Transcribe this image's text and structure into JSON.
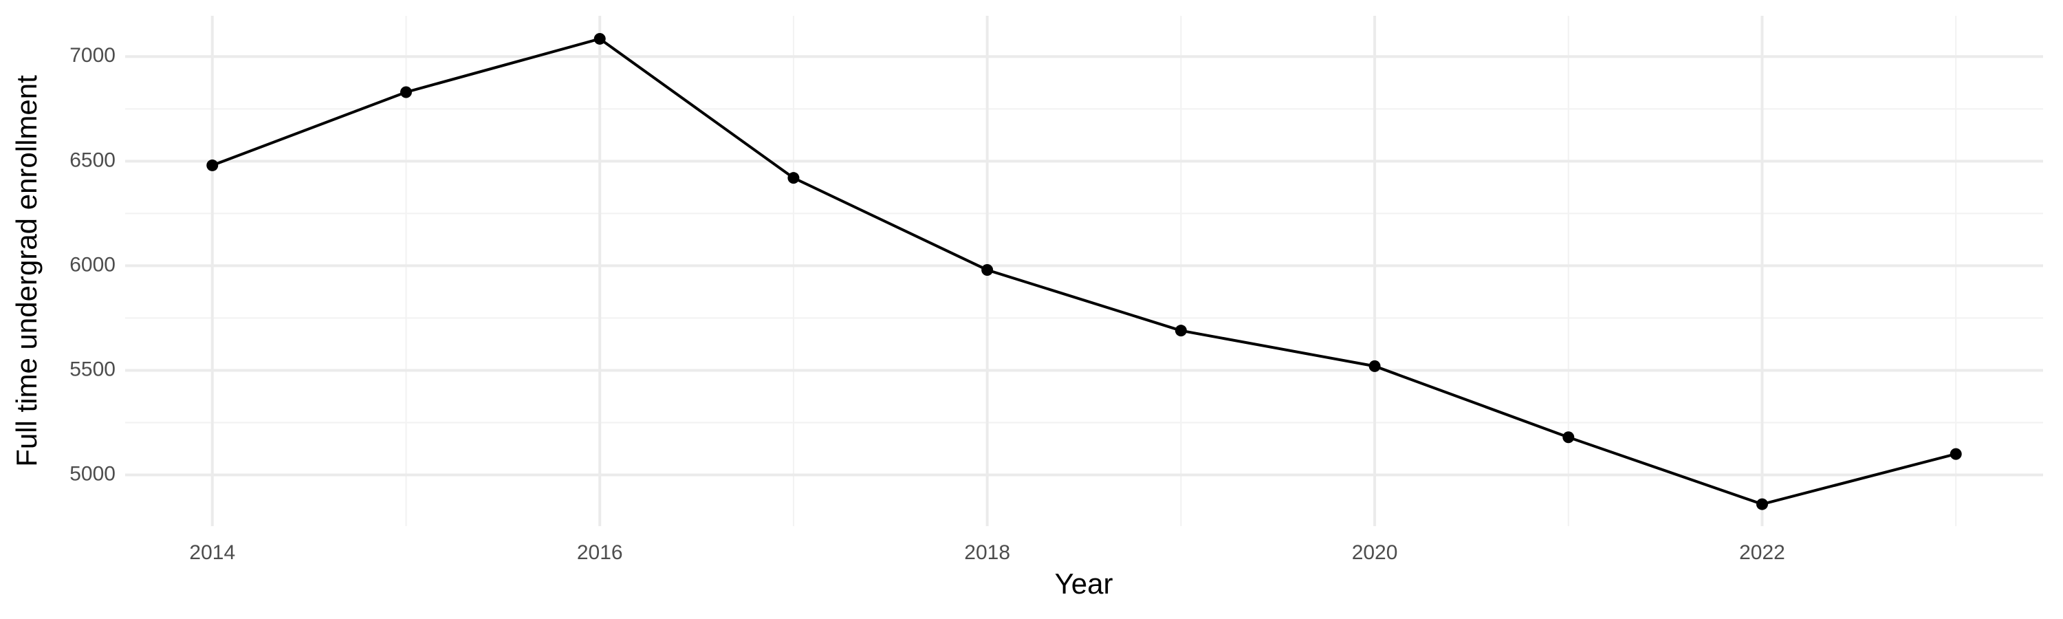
{
  "chart_data": {
    "type": "line",
    "x_label": "Year",
    "y_label": "Full time undergrad enrollment",
    "x": [
      2014,
      2015,
      2016,
      2017,
      2018,
      2019,
      2020,
      2021,
      2022,
      2023
    ],
    "series": [
      {
        "color": "#000000",
        "values": [
          6480,
          6830,
          7085,
          6420,
          5980,
          5690,
          5520,
          5180,
          4860,
          5100
        ]
      }
    ],
    "xlim": [
      2013.55,
      2023.45
    ],
    "xticks": [
      2014,
      2016,
      2018,
      2020,
      2022
    ],
    "ylim": [
      4755,
      7195
    ],
    "yticks": [
      5000,
      5500,
      6000,
      6500,
      7000
    ],
    "grid": true
  }
}
